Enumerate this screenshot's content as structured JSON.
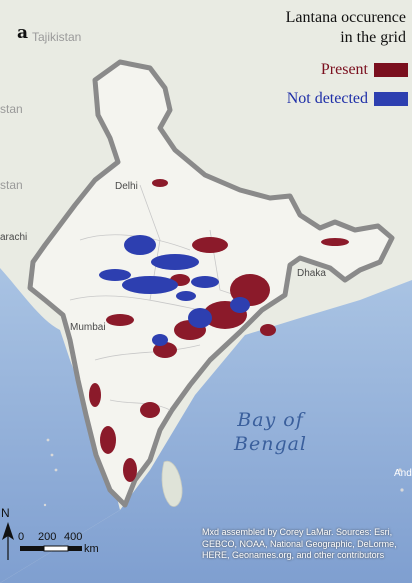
{
  "panel_label": "a",
  "legend": {
    "title_line1": "Lantana occurence",
    "title_line2": "in the grid",
    "present_label": "Present",
    "not_detected_label": "Not detected",
    "present_color": "#7a0f1e",
    "not_detected_color": "#2d3fb0"
  },
  "places": {
    "tajikistan": "Tajikistan",
    "stan1": "stan",
    "stan2": "stan",
    "karachi": "arachi",
    "delhi": "Delhi",
    "mumbai": "Mumbai",
    "dhaka": "Dhaka",
    "andaman": "Anda"
  },
  "sea_label_line1": "Bay of",
  "sea_label_line2": "Bengal",
  "scale": {
    "ticks": [
      "0",
      "200",
      "400"
    ],
    "unit": "km"
  },
  "north_label": "N",
  "attribution": "Mxd assembled by Corey LaMar. Sources: Esri, GEBCO, NOAA, National Geographic, DeLorme, HERE, Geonames.org, and other contributors"
}
